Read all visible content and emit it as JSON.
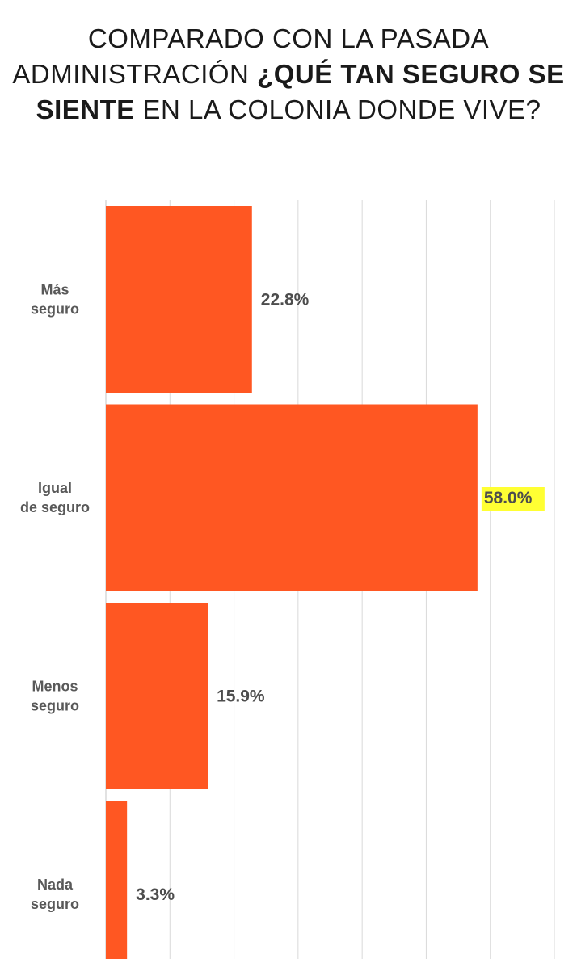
{
  "title": {
    "part1": "COMPARADO CON LA PASADA ADMINISTRACIÓN ",
    "part2": "¿QUÉ TAN SEGURO SE SIENTE",
    "part3": " EN LA COLONIA DONDE VIVE?"
  },
  "colors": {
    "bar": "#ff5722",
    "highlight": "#ffff33",
    "grid": "#d9d9d9"
  },
  "chart_data": {
    "type": "bar",
    "orientation": "horizontal",
    "title": "COMPARADO CON LA PASADA ADMINISTRACIÓN ¿QUÉ TAN SEGURO SE SIENTE EN LA COLONIA DONDE VIVE?",
    "xlabel": "",
    "ylabel": "",
    "categories": [
      [
        "Más",
        "seguro"
      ],
      [
        "Igual",
        "de seguro"
      ],
      [
        "Menos",
        "seguro"
      ],
      [
        "Nada",
        "seguro"
      ]
    ],
    "values": [
      22.8,
      58.0,
      15.9,
      3.3
    ],
    "value_labels": [
      "22.8%",
      "58.0%",
      "15.9%",
      "3.3%"
    ],
    "highlighted_index": 1,
    "xlim": [
      0,
      70
    ],
    "grid": true,
    "legend": "none"
  }
}
